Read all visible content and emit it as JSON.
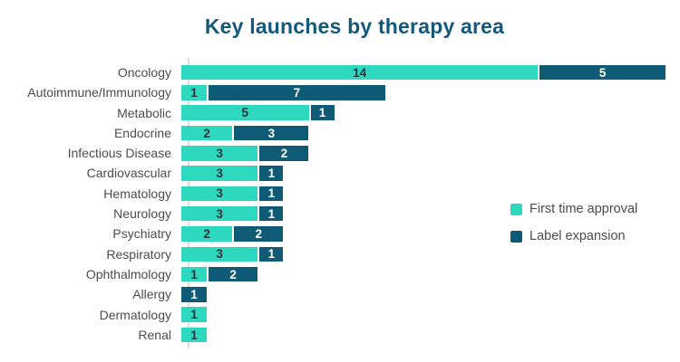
{
  "chart_data": {
    "type": "bar",
    "orientation": "horizontal",
    "stacked": true,
    "title": "Key launches by therapy area",
    "categories": [
      "Oncology",
      "Autoimmune/Immunology",
      "Metabolic",
      "Endocrine",
      "Infectious Disease",
      "Cardiovascular",
      "Hematology",
      "Neurology",
      "Psychiatry",
      "Respiratory",
      "Ophthalmology",
      "Allergy",
      "Dermatology",
      "Renal"
    ],
    "series": [
      {
        "name": "First time approval",
        "color": "#2dd8bf",
        "values": [
          14,
          1,
          5,
          2,
          3,
          3,
          3,
          3,
          2,
          3,
          1,
          0,
          1,
          1
        ]
      },
      {
        "name": "Label expansion",
        "color": "#0f5a75",
        "values": [
          5,
          7,
          1,
          3,
          2,
          1,
          1,
          1,
          2,
          1,
          2,
          1,
          0,
          0
        ]
      }
    ],
    "value_labels_shown": true,
    "legend_position": "center-right",
    "xlim": [
      0,
      19
    ],
    "grid": false,
    "axis_baseline_color": "#dcdcdc"
  },
  "styles": {
    "title_color": "#14587c",
    "category_label_color": "#4c4c4c",
    "value_label_on_light": "#2a343a",
    "value_label_on_dark": "#ffffff",
    "legend_label_color": "#4c4c4c",
    "background": "#ffffff"
  }
}
